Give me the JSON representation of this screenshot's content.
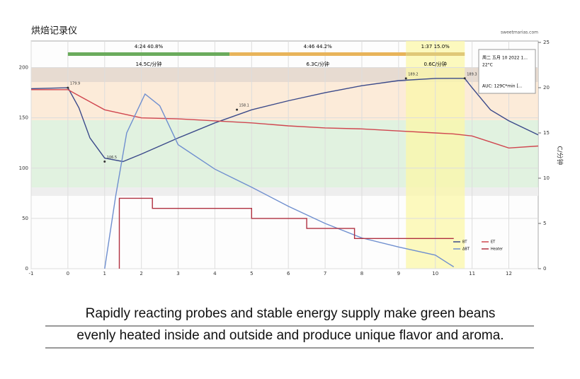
{
  "chart_data": {
    "type": "line",
    "title": "烘焙记录仪",
    "watermark": "sweetmarias.com",
    "y2label": "C/分钟",
    "xlim": [
      -1,
      12.8
    ],
    "xticks": [
      -1,
      0,
      1,
      2,
      3,
      4,
      5,
      6,
      7,
      8,
      9,
      10,
      11,
      12
    ],
    "ylim": [
      0,
      225
    ],
    "yticks": [
      0,
      50,
      100,
      150,
      200
    ],
    "y2lim": [
      0,
      25
    ],
    "y2ticks": [
      0,
      5,
      10,
      15,
      20,
      25
    ],
    "grid": true,
    "phases": [
      {
        "label": "4:24 40.8%",
        "ror": "14.5C/分钟",
        "start": 0,
        "end": 4.4,
        "color": "#6aab5c"
      },
      {
        "label": "4:46 44.2%",
        "ror": "6.3C/分钟",
        "start": 4.4,
        "end": 9.2,
        "color": "#e8b45a"
      },
      {
        "label": "1:37 15.0%",
        "ror": "0.6C/分钟",
        "start": 9.2,
        "end": 10.8,
        "color": "#e0c878"
      }
    ],
    "series": [
      {
        "name": "BT",
        "color": "#3b4a8a",
        "x": [
          -1,
          0,
          0.3,
          0.6,
          1,
          1.5,
          2,
          3,
          4,
          5,
          6,
          7,
          8,
          9,
          10,
          10.8,
          11,
          11.5,
          12,
          12.8
        ],
        "values": [
          179,
          179.9,
          160,
          130,
          110,
          106.5,
          114,
          130,
          145,
          158,
          167,
          175,
          182,
          187,
          189.2,
          189.3,
          180,
          158,
          147,
          133
        ]
      },
      {
        "name": "ET",
        "color": "#d0464f",
        "x": [
          -1,
          0,
          0.3,
          1,
          2,
          3,
          4,
          5,
          6,
          7,
          8,
          9,
          10,
          10.5,
          11,
          11.5,
          12,
          12.8
        ],
        "values": [
          178,
          178,
          172,
          158,
          150,
          149,
          147,
          145,
          142,
          140,
          139,
          137,
          135,
          134,
          132,
          126,
          120,
          122
        ]
      },
      {
        "name": "ΔBT",
        "color": "#6f8fcf",
        "axis": "y2",
        "x": [
          1,
          1.3,
          1.6,
          2.1,
          2.5,
          3,
          4,
          5,
          6,
          7,
          8,
          9,
          10,
          10.5
        ],
        "values": [
          0,
          8,
          15,
          19.3,
          18,
          13.7,
          11,
          9,
          6.9,
          5,
          3.4,
          2.4,
          1.5,
          0.2
        ]
      },
      {
        "name": "Heater",
        "color": "#b03040",
        "x": [
          1.4,
          1.4,
          2.3,
          2.3,
          5,
          5,
          6.5,
          6.5,
          7.8,
          7.8,
          10.5
        ],
        "values": [
          0,
          70,
          70,
          60,
          60,
          50,
          50,
          40,
          40,
          30,
          30
        ]
      }
    ],
    "annotations": [
      {
        "text": "179.9",
        "x": 0,
        "y": 179.9
      },
      {
        "text": "106.5",
        "x": 1,
        "y": 106.5
      },
      {
        "text": "158.1",
        "x": 4.6,
        "y": 158.1
      },
      {
        "text": "189.2",
        "x": 9.2,
        "y": 189.2
      },
      {
        "text": "189.3",
        "x": 10.8,
        "y": 189.3
      }
    ],
    "info": [
      "周二 五月 10 2022 1...",
      "22°C",
      "AUC: 129C*min [..."
    ]
  },
  "caption": [
    "Rapidly reacting probes and stable energy supply make green beans",
    "evenly heated inside and outside and produce unique flavor and aroma."
  ]
}
